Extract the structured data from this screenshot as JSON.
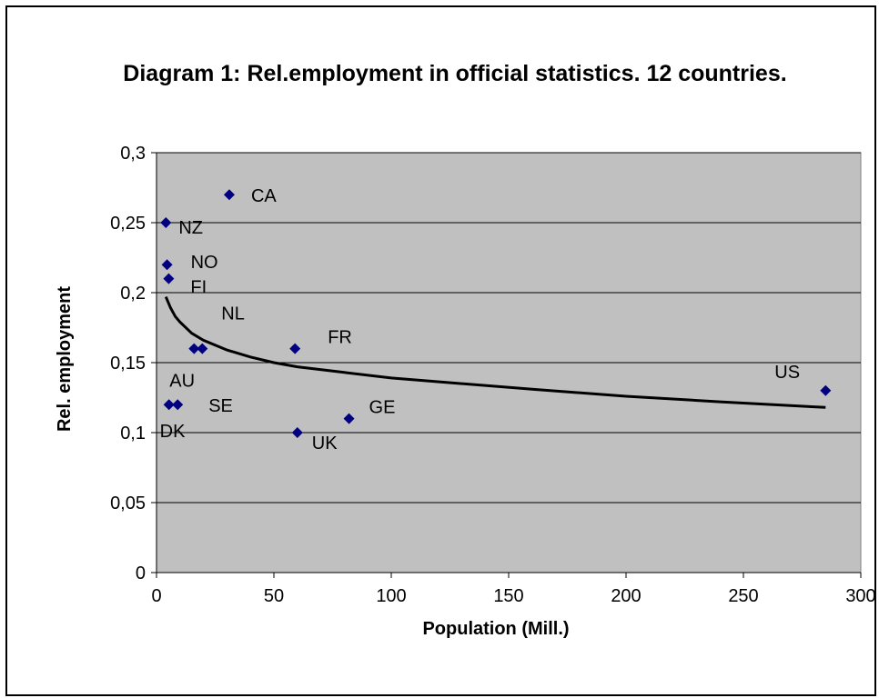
{
  "chart_data": {
    "type": "scatter",
    "title": "Diagram 1: Rel.employment in official statistics. 12 countries.",
    "xlabel": "Population (Mill.)",
    "ylabel": "Rel. employment",
    "xlim": [
      0,
      300
    ],
    "ylim": [
      0,
      0.3
    ],
    "x_ticks": [
      "0",
      "50",
      "100",
      "150",
      "200",
      "250",
      "300"
    ],
    "y_ticks": [
      "0",
      "0,05",
      "0,1",
      "0,15",
      "0,2",
      "0,25",
      "0,3"
    ],
    "grid": "horizontal",
    "points": [
      {
        "label": "CA",
        "x": 31,
        "y": 0.27
      },
      {
        "label": "NZ",
        "x": 4,
        "y": 0.25
      },
      {
        "label": "NO",
        "x": 4.5,
        "y": 0.22
      },
      {
        "label": "FI",
        "x": 5.2,
        "y": 0.21
      },
      {
        "label": "NL",
        "x": 16,
        "y": 0.16
      },
      {
        "label": "AU",
        "x": 19.5,
        "y": 0.16
      },
      {
        "label": "FR",
        "x": 59,
        "y": 0.16
      },
      {
        "label": "SE",
        "x": 9,
        "y": 0.12
      },
      {
        "label": "DK",
        "x": 5.3,
        "y": 0.12
      },
      {
        "label": "GE",
        "x": 82,
        "y": 0.11
      },
      {
        "label": "UK",
        "x": 60,
        "y": 0.1
      },
      {
        "label": "US",
        "x": 285,
        "y": 0.13
      }
    ],
    "trendline": {
      "x": [
        4,
        6,
        8,
        10,
        15,
        20,
        30,
        40,
        50,
        60,
        80,
        100,
        130,
        160,
        200,
        240,
        285
      ],
      "y": [
        0.197,
        0.189,
        0.183,
        0.179,
        0.171,
        0.166,
        0.159,
        0.154,
        0.15,
        0.147,
        0.143,
        0.139,
        0.135,
        0.131,
        0.126,
        0.122,
        0.118
      ]
    },
    "colors": {
      "plot_background": "#c0c0c0",
      "marker": "#000080",
      "trendline": "#000000",
      "gridline": "#000000"
    }
  }
}
